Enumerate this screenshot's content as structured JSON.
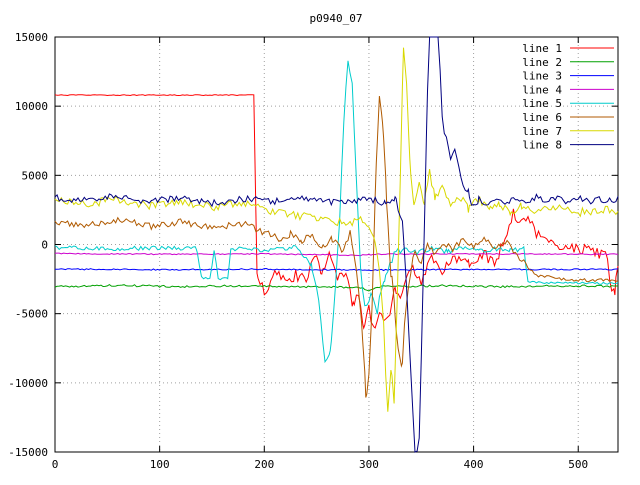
{
  "chart_data": {
    "type": "line",
    "title": "p0940_07",
    "xlabel": "",
    "ylabel": "",
    "xlim": [
      0,
      538
    ],
    "ylim": [
      -15000,
      15000
    ],
    "xticks": [
      0,
      100,
      200,
      300,
      400,
      500
    ],
    "yticks": [
      -15000,
      -10000,
      -5000,
      0,
      5000,
      10000,
      15000
    ],
    "grid": true,
    "legend_position": "top-right-inside",
    "colors": {
      "background": "#ffffff",
      "border": "#000000",
      "grid": "#a0a0a0",
      "text": "#000000"
    },
    "series": [
      {
        "name": "line 1",
        "color": "#ff0000",
        "noise": [
          [
            0,
            191,
            30
          ],
          [
            191,
            538,
            380
          ]
        ],
        "keypoints": [
          [
            0,
            10800
          ],
          [
            190,
            10800
          ],
          [
            193,
            -2000
          ],
          [
            200,
            -3600
          ],
          [
            210,
            -1800
          ],
          [
            220,
            -2800
          ],
          [
            230,
            -2200
          ],
          [
            240,
            -2600
          ],
          [
            248,
            -500
          ],
          [
            255,
            -2000
          ],
          [
            262,
            -900
          ],
          [
            270,
            -2500
          ],
          [
            278,
            -2200
          ],
          [
            285,
            -4500
          ],
          [
            290,
            -3500
          ],
          [
            295,
            -5800
          ],
          [
            300,
            -4500
          ],
          [
            305,
            -6300
          ],
          [
            310,
            -5000
          ],
          [
            318,
            -5600
          ],
          [
            325,
            -3000
          ],
          [
            330,
            -4200
          ],
          [
            340,
            -1500
          ],
          [
            350,
            -2600
          ],
          [
            360,
            -1100
          ],
          [
            370,
            -1900
          ],
          [
            380,
            -800
          ],
          [
            395,
            -1300
          ],
          [
            410,
            -600
          ],
          [
            420,
            -1500
          ],
          [
            430,
            500
          ],
          [
            438,
            2400
          ],
          [
            445,
            1500
          ],
          [
            452,
            2100
          ],
          [
            460,
            800
          ],
          [
            470,
            300
          ],
          [
            480,
            -300
          ],
          [
            490,
            0
          ],
          [
            500,
            -400
          ],
          [
            510,
            -300
          ],
          [
            520,
            -700
          ],
          [
            528,
            -900
          ],
          [
            532,
            -3600
          ],
          [
            535,
            -3400
          ],
          [
            538,
            -1200
          ]
        ]
      },
      {
        "name": "line 2",
        "color": "#00a000",
        "noise": [
          [
            0,
            538,
            70
          ]
        ],
        "keypoints": [
          [
            0,
            -3050
          ],
          [
            60,
            -2950
          ],
          [
            120,
            -3050
          ],
          [
            180,
            -2980
          ],
          [
            240,
            -3060
          ],
          [
            290,
            -3100
          ],
          [
            300,
            -3300
          ],
          [
            310,
            -3050
          ],
          [
            370,
            -2980
          ],
          [
            430,
            -3050
          ],
          [
            490,
            -2990
          ],
          [
            538,
            -3020
          ]
        ]
      },
      {
        "name": "line 3",
        "color": "#0000ff",
        "noise": [
          [
            0,
            538,
            45
          ]
        ],
        "keypoints": [
          [
            0,
            -1780
          ],
          [
            100,
            -1820
          ],
          [
            200,
            -1780
          ],
          [
            300,
            -1850
          ],
          [
            400,
            -1800
          ],
          [
            538,
            -1800
          ]
        ]
      },
      {
        "name": "line 4",
        "color": "#cc00cc",
        "noise": [
          [
            0,
            538,
            40
          ]
        ],
        "keypoints": [
          [
            0,
            -650
          ],
          [
            100,
            -700
          ],
          [
            200,
            -680
          ],
          [
            290,
            -780
          ],
          [
            310,
            -700
          ],
          [
            400,
            -680
          ],
          [
            538,
            -700
          ]
        ]
      },
      {
        "name": "line 5",
        "color": "#00cccc",
        "noise": [
          [
            0,
            248,
            150
          ],
          [
            248,
            330,
            450
          ],
          [
            330,
            450,
            180
          ],
          [
            450,
            538,
            80
          ]
        ],
        "keypoints": [
          [
            0,
            -200
          ],
          [
            50,
            -300
          ],
          [
            100,
            -250
          ],
          [
            135,
            -300
          ],
          [
            140,
            -2400
          ],
          [
            148,
            -2500
          ],
          [
            152,
            -400
          ],
          [
            156,
            -2600
          ],
          [
            165,
            -2500
          ],
          [
            168,
            -300
          ],
          [
            200,
            -400
          ],
          [
            230,
            -200
          ],
          [
            245,
            -1500
          ],
          [
            252,
            -4000
          ],
          [
            258,
            -8300
          ],
          [
            263,
            -7500
          ],
          [
            268,
            -3000
          ],
          [
            272,
            2000
          ],
          [
            276,
            9000
          ],
          [
            280,
            13200
          ],
          [
            284,
            12000
          ],
          [
            288,
            5000
          ],
          [
            292,
            -2000
          ],
          [
            296,
            -4200
          ],
          [
            302,
            -3800
          ],
          [
            308,
            -4600
          ],
          [
            315,
            -2500
          ],
          [
            322,
            -1200
          ],
          [
            330,
            -300
          ],
          [
            345,
            -600
          ],
          [
            360,
            -300
          ],
          [
            375,
            -500
          ],
          [
            390,
            -300
          ],
          [
            405,
            -500
          ],
          [
            420,
            -300
          ],
          [
            435,
            -450
          ],
          [
            448,
            -350
          ],
          [
            452,
            -2700
          ],
          [
            470,
            -2800
          ],
          [
            490,
            -2750
          ],
          [
            510,
            -2820
          ],
          [
            538,
            -2800
          ]
        ]
      },
      {
        "name": "line 6",
        "color": "#b05a00",
        "noise": [
          [
            0,
            282,
            260
          ],
          [
            282,
            340,
            500
          ],
          [
            340,
            450,
            260
          ],
          [
            450,
            538,
            120
          ]
        ],
        "keypoints": [
          [
            0,
            1600
          ],
          [
            30,
            1400
          ],
          [
            60,
            1800
          ],
          [
            90,
            1300
          ],
          [
            120,
            1600
          ],
          [
            150,
            1200
          ],
          [
            180,
            1500
          ],
          [
            200,
            900
          ],
          [
            215,
            400
          ],
          [
            225,
            800
          ],
          [
            235,
            200
          ],
          [
            245,
            600
          ],
          [
            255,
            -200
          ],
          [
            265,
            400
          ],
          [
            275,
            -500
          ],
          [
            282,
            800
          ],
          [
            288,
            -2000
          ],
          [
            293,
            -6000
          ],
          [
            297,
            -10800
          ],
          [
            300,
            -9500
          ],
          [
            303,
            -4000
          ],
          [
            307,
            6000
          ],
          [
            310,
            11200
          ],
          [
            313,
            9000
          ],
          [
            317,
            3000
          ],
          [
            321,
            -2000
          ],
          [
            325,
            -5000
          ],
          [
            328,
            -8000
          ],
          [
            331,
            -9200
          ],
          [
            334,
            -6000
          ],
          [
            338,
            -2500
          ],
          [
            344,
            -500
          ],
          [
            350,
            -1500
          ],
          [
            356,
            300
          ],
          [
            362,
            -800
          ],
          [
            370,
            200
          ],
          [
            380,
            -400
          ],
          [
            390,
            300
          ],
          [
            400,
            -200
          ],
          [
            410,
            400
          ],
          [
            420,
            -300
          ],
          [
            430,
            200
          ],
          [
            440,
            -500
          ],
          [
            450,
            -1500
          ],
          [
            460,
            -2200
          ],
          [
            480,
            -2500
          ],
          [
            500,
            -2600
          ],
          [
            520,
            -2550
          ],
          [
            538,
            -2600
          ]
        ]
      },
      {
        "name": "line 7",
        "color": "#d8d800",
        "noise": [
          [
            0,
            303,
            280
          ],
          [
            303,
            345,
            400
          ],
          [
            345,
            538,
            300
          ]
        ],
        "keypoints": [
          [
            0,
            3200
          ],
          [
            30,
            2900
          ],
          [
            60,
            3300
          ],
          [
            90,
            2800
          ],
          [
            120,
            3100
          ],
          [
            150,
            2700
          ],
          [
            180,
            3000
          ],
          [
            210,
            2300
          ],
          [
            240,
            2000
          ],
          [
            260,
            1800
          ],
          [
            280,
            1500
          ],
          [
            295,
            1800
          ],
          [
            305,
            500
          ],
          [
            310,
            -2000
          ],
          [
            314,
            -6000
          ],
          [
            318,
            -12300
          ],
          [
            321,
            -9000
          ],
          [
            324,
            -11500
          ],
          [
            327,
            -4000
          ],
          [
            330,
            5000
          ],
          [
            333,
            14200
          ],
          [
            336,
            12000
          ],
          [
            339,
            6000
          ],
          [
            343,
            2500
          ],
          [
            348,
            4500
          ],
          [
            353,
            3000
          ],
          [
            358,
            5200
          ],
          [
            363,
            3500
          ],
          [
            370,
            4200
          ],
          [
            378,
            2800
          ],
          [
            386,
            3500
          ],
          [
            395,
            2600
          ],
          [
            405,
            3200
          ],
          [
            415,
            2500
          ],
          [
            425,
            3000
          ],
          [
            435,
            2300
          ],
          [
            445,
            2800
          ],
          [
            460,
            2400
          ],
          [
            480,
            2600
          ],
          [
            500,
            2300
          ],
          [
            520,
            2500
          ],
          [
            538,
            2400
          ]
        ]
      },
      {
        "name": "line 8",
        "color": "#000080",
        "noise": [
          [
            0,
            330,
            240
          ],
          [
            330,
            400,
            300
          ],
          [
            400,
            538,
            240
          ]
        ],
        "keypoints": [
          [
            0,
            3400
          ],
          [
            30,
            3200
          ],
          [
            60,
            3500
          ],
          [
            90,
            3100
          ],
          [
            120,
            3400
          ],
          [
            150,
            3000
          ],
          [
            180,
            3300
          ],
          [
            210,
            3100
          ],
          [
            240,
            3400
          ],
          [
            270,
            3000
          ],
          [
            300,
            3300
          ],
          [
            315,
            3000
          ],
          [
            325,
            3400
          ],
          [
            332,
            1500
          ],
          [
            336,
            -3000
          ],
          [
            340,
            -9000
          ],
          [
            344,
            -15500
          ],
          [
            348,
            -14000
          ],
          [
            352,
            -2000
          ],
          [
            355,
            8000
          ],
          [
            358,
            16500
          ],
          [
            362,
            17000
          ],
          [
            366,
            16000
          ],
          [
            370,
            9000
          ],
          [
            374,
            7500
          ],
          [
            378,
            6300
          ],
          [
            382,
            6900
          ],
          [
            386,
            5500
          ],
          [
            390,
            4500
          ],
          [
            395,
            3800
          ],
          [
            400,
            2600
          ],
          [
            405,
            3300
          ],
          [
            410,
            2900
          ],
          [
            420,
            3400
          ],
          [
            430,
            3000
          ],
          [
            440,
            3400
          ],
          [
            450,
            3100
          ],
          [
            460,
            3400
          ],
          [
            470,
            3100
          ],
          [
            480,
            3300
          ],
          [
            490,
            3000
          ],
          [
            500,
            3400
          ],
          [
            510,
            3100
          ],
          [
            520,
            3300
          ],
          [
            530,
            3200
          ],
          [
            538,
            3300
          ]
        ]
      }
    ]
  }
}
